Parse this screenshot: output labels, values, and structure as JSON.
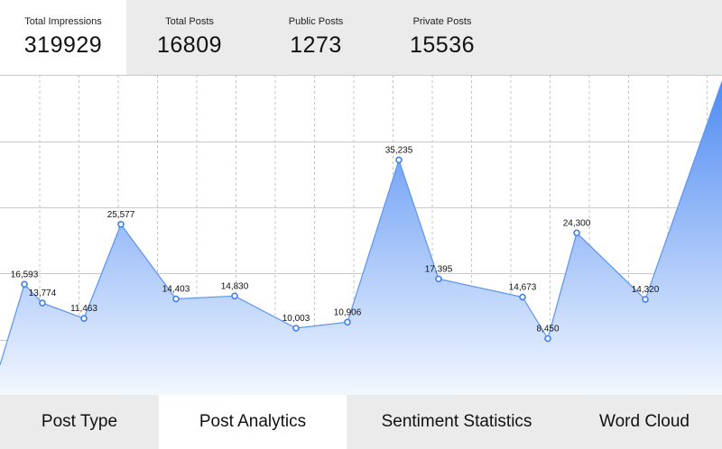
{
  "stats": [
    {
      "label": "Total Impressions",
      "value": "319929"
    },
    {
      "label": "Total Posts",
      "value": "16809"
    },
    {
      "label": "Public Posts",
      "value": "1273"
    },
    {
      "label": "Private Posts",
      "value": "15536"
    }
  ],
  "tabs": [
    {
      "label": "Post Type"
    },
    {
      "label": "Post Analytics"
    },
    {
      "label": "Sentiment Statistics"
    },
    {
      "label": "Word Cloud"
    }
  ],
  "active_tab": "Post Analytics",
  "colors": {
    "line": "#5b95f0",
    "fill_top": "#4f8bf2",
    "fill_bottom": "#f3f7ff",
    "point_stroke": "#3f7ff0",
    "background_bar": "#ebebeb"
  },
  "chart_data": {
    "type": "area",
    "title": "",
    "xlabel": "",
    "ylabel": "",
    "ylim": [
      0,
      48000
    ],
    "grid": true,
    "series": [
      {
        "values": [
          4500,
          16593,
          13774,
          11463,
          25577,
          14403,
          14830,
          10003,
          10906,
          35235,
          17395,
          14673,
          8450,
          24300,
          14320,
          47000
        ],
        "labels": [
          "",
          "16,593",
          "13,774",
          "11,463",
          "25,577",
          "14,403",
          "14,830",
          "10,003",
          "10,906",
          "35,235",
          "17,395",
          "14,673",
          "8,450",
          "24,300",
          "14,320",
          ""
        ]
      }
    ]
  }
}
